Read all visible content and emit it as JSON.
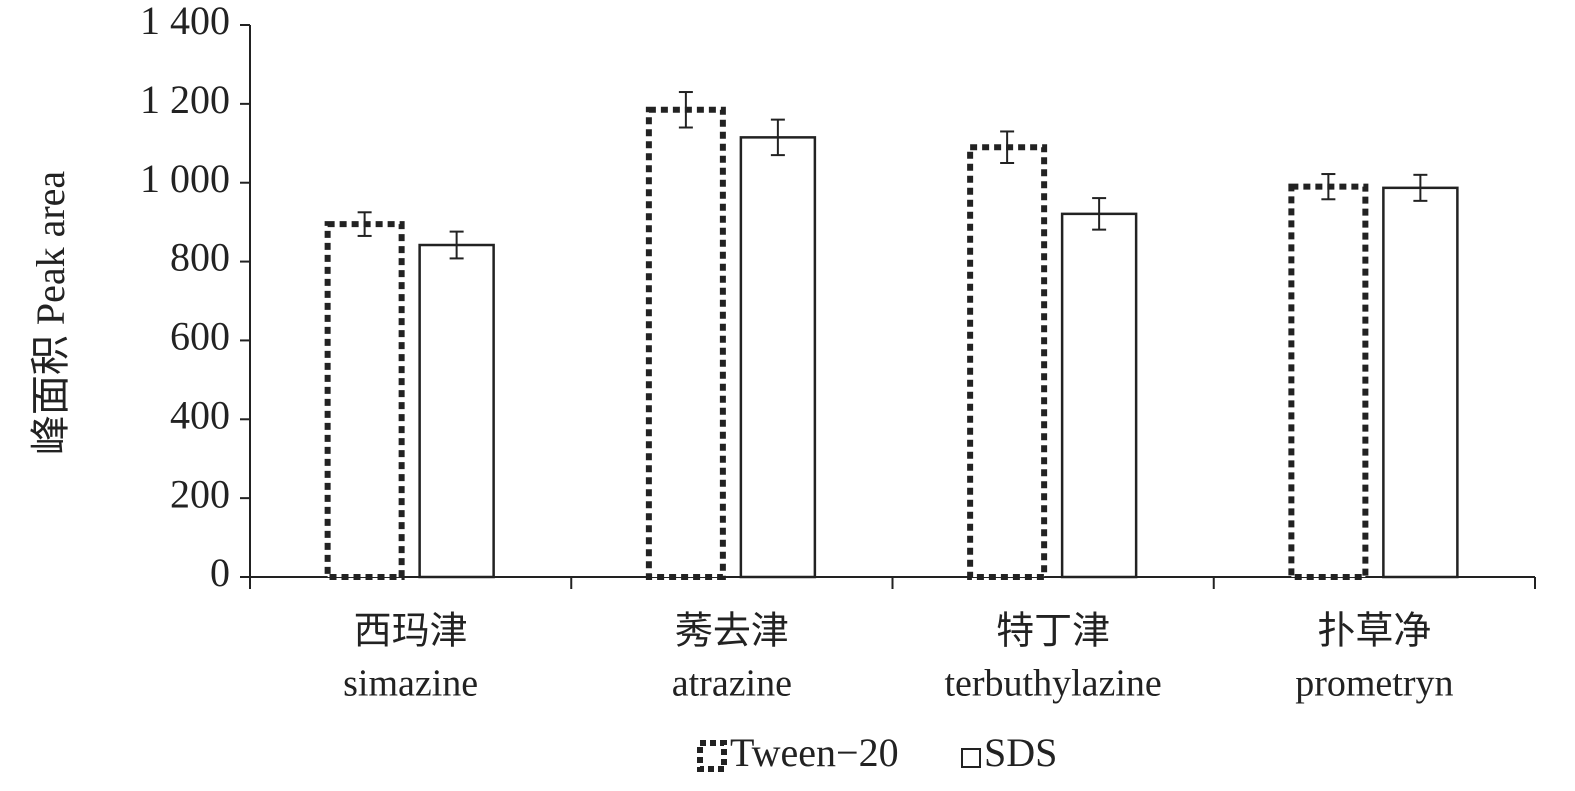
{
  "chart_data": {
    "type": "bar",
    "y_label": "峰面积 Peak area",
    "categories_cn": [
      "西玛津",
      "莠去津",
      "特丁津",
      "扑草净"
    ],
    "categories": [
      "simazine",
      "atrazine",
      "terbuthylazine",
      "prometryn"
    ],
    "series": [
      {
        "name": "Tween−20",
        "color": "#222222",
        "style": "dotted",
        "values": [
          895,
          1185,
          1090,
          990
        ],
        "errors": [
          30,
          45,
          40,
          32
        ]
      },
      {
        "name": "SDS",
        "color": "#222222",
        "style": "solid",
        "values": [
          842,
          1115,
          921,
          987
        ],
        "errors": [
          34,
          45,
          40,
          33
        ]
      }
    ],
    "ylim": [
      0,
      1400
    ],
    "yticks": [
      0,
      200,
      400,
      600,
      800,
      {
        "value": 1000,
        "label": "1 000"
      },
      {
        "value": 1200,
        "label": "1 200"
      },
      {
        "value": 1400,
        "label": "1 400"
      }
    ],
    "grid": false
  }
}
